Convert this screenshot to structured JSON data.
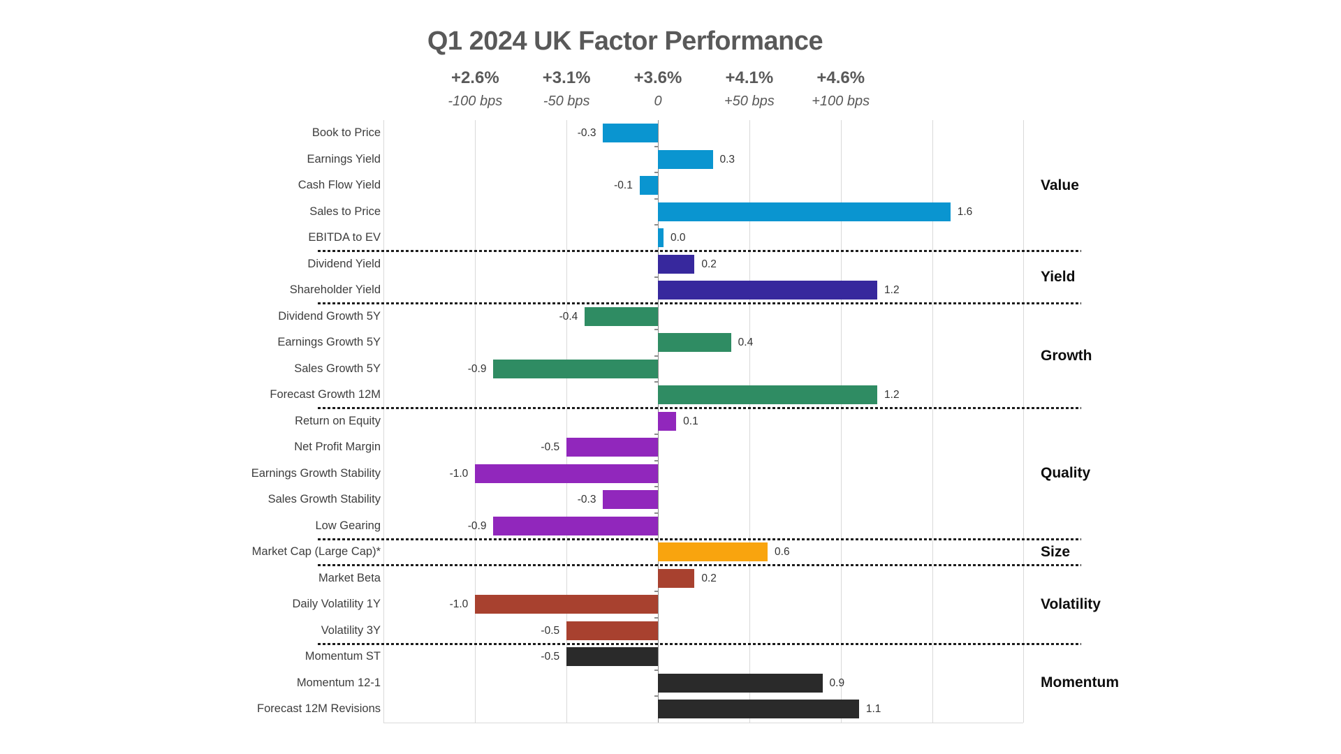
{
  "chart_data": {
    "type": "bar",
    "orientation": "horizontal",
    "title": "Q1 2024 UK Factor Performance",
    "x_axis": {
      "grid": true,
      "range_bps": [
        -150,
        200
      ],
      "ticks": [
        {
          "pct": "+2.6%",
          "bps": "-100 bps",
          "bps_value": -100
        },
        {
          "pct": "+3.1%",
          "bps": "-50 bps",
          "bps_value": -50
        },
        {
          "pct": "+3.6%",
          "bps": "0",
          "bps_value": 0
        },
        {
          "pct": "+4.1%",
          "bps": "+50 bps",
          "bps_value": 50
        },
        {
          "pct": "+4.6%",
          "bps": "+100 bps",
          "bps_value": 100
        }
      ]
    },
    "groups": [
      {
        "name": "Value",
        "color": "#0a95d0",
        "factors": [
          {
            "label": "Book to Price",
            "value": -0.3
          },
          {
            "label": "Earnings Yield",
            "value": 0.3
          },
          {
            "label": "Cash Flow Yield",
            "value": -0.1
          },
          {
            "label": "Sales to Price",
            "value": 1.6
          },
          {
            "label": "EBITDA to EV",
            "value": 0.0
          }
        ]
      },
      {
        "name": "Yield",
        "color": "#37289d",
        "factors": [
          {
            "label": "Dividend Yield",
            "value": 0.2
          },
          {
            "label": "Shareholder Yield",
            "value": 1.2
          }
        ]
      },
      {
        "name": "Growth",
        "color": "#2f8c63",
        "factors": [
          {
            "label": "Dividend Growth 5Y",
            "value": -0.4
          },
          {
            "label": "Earnings Growth 5Y",
            "value": 0.4
          },
          {
            "label": "Sales Growth 5Y",
            "value": -0.9
          },
          {
            "label": "Forecast Growth 12M",
            "value": 1.2
          }
        ]
      },
      {
        "name": "Quality",
        "color": "#9127bc",
        "factors": [
          {
            "label": "Return on Equity",
            "value": 0.1
          },
          {
            "label": "Net Profit Margin",
            "value": -0.5
          },
          {
            "label": "Earnings Growth Stability",
            "value": -1.0
          },
          {
            "label": "Sales Growth Stability",
            "value": -0.3
          },
          {
            "label": "Low Gearing",
            "value": -0.9
          }
        ]
      },
      {
        "name": "Size",
        "color": "#f9a40e",
        "factors": [
          {
            "label": "Market Cap (Large Cap)*",
            "value": 0.6
          }
        ]
      },
      {
        "name": "Volatility",
        "color": "#a8412f",
        "factors": [
          {
            "label": "Market Beta",
            "value": 0.2
          },
          {
            "label": "Daily Volatility 1Y",
            "value": -1.0
          },
          {
            "label": "Volatility 3Y",
            "value": -0.5
          }
        ]
      },
      {
        "name": "Momentum",
        "color": "#2a2a2a",
        "factors": [
          {
            "label": "Momentum ST",
            "value": -0.5
          },
          {
            "label": "Momentum 12-1",
            "value": 0.9
          },
          {
            "label": "Forecast 12M Revisions",
            "value": 1.1
          }
        ]
      }
    ]
  }
}
